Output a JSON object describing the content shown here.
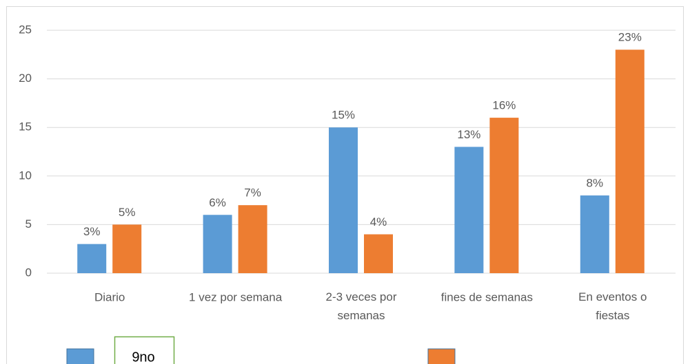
{
  "chart_data": {
    "type": "bar",
    "categories": [
      "Diario",
      "1 vez por semana",
      "2-3 veces por semanas",
      "fines de semanas",
      "En eventos o fiestas"
    ],
    "series": [
      {
        "name": "9no",
        "color": "#5b9bd5",
        "values": [
          3,
          6,
          15,
          13,
          8
        ],
        "value_labels": [
          "3%",
          "6%",
          "15%",
          "13%",
          "8%"
        ]
      },
      {
        "color": "#ed7d31",
        "values": [
          5,
          7,
          4,
          16,
          23
        ],
        "value_labels": [
          "5%",
          "7%",
          "4%",
          "16%",
          "23%"
        ]
      }
    ],
    "ylim": [
      0,
      25
    ],
    "yticks": [
      0,
      5,
      10,
      15,
      20,
      25
    ],
    "grid": true,
    "legend": "bottom"
  }
}
